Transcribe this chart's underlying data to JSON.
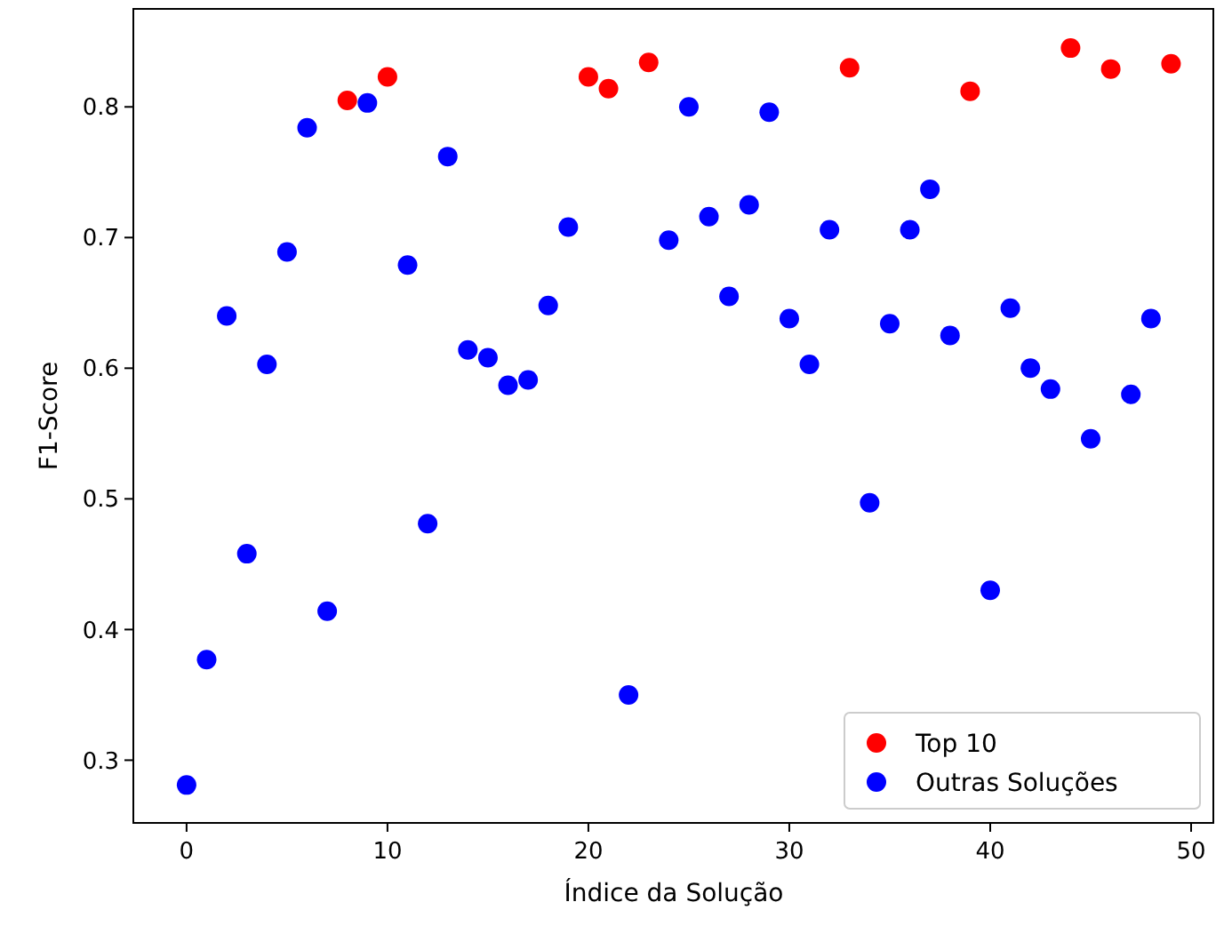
{
  "chart_data": {
    "type": "scatter",
    "xlabel": "Índice da Solução",
    "ylabel": "F1-Score",
    "xlim": [
      -2.65,
      51.15
    ],
    "ylim": [
      0.252,
      0.875
    ],
    "xticks": [
      0,
      10,
      20,
      30,
      40,
      50
    ],
    "yticks": [
      0.3,
      0.4,
      0.5,
      0.6,
      0.7,
      0.8
    ],
    "grid": false,
    "legend": "bottom right",
    "marker": "circle",
    "series": [
      {
        "name": "Top 10",
        "color": "#ff0000",
        "x": [
          8,
          10,
          20,
          21,
          23,
          33,
          39,
          44,
          46,
          49
        ],
        "values": [
          0.805,
          0.823,
          0.823,
          0.814,
          0.834,
          0.83,
          0.812,
          0.845,
          0.829,
          0.833
        ]
      },
      {
        "name": "Outras Soluções",
        "color": "#0000ff",
        "x": [
          0,
          1,
          2,
          3,
          4,
          5,
          6,
          7,
          9,
          11,
          12,
          13,
          14,
          15,
          16,
          17,
          18,
          19,
          22,
          24,
          25,
          26,
          27,
          28,
          29,
          30,
          31,
          32,
          34,
          35,
          36,
          37,
          38,
          40,
          41,
          42,
          43,
          45,
          47,
          48
        ],
        "values": [
          0.281,
          0.377,
          0.64,
          0.458,
          0.603,
          0.689,
          0.784,
          0.414,
          0.803,
          0.679,
          0.481,
          0.762,
          0.614,
          0.608,
          0.587,
          0.591,
          0.648,
          0.708,
          0.35,
          0.698,
          0.8,
          0.716,
          0.655,
          0.725,
          0.796,
          0.638,
          0.603,
          0.706,
          0.497,
          0.634,
          0.706,
          0.737,
          0.625,
          0.43,
          0.646,
          0.6,
          0.584,
          0.546,
          0.58,
          0.638
        ]
      }
    ]
  }
}
